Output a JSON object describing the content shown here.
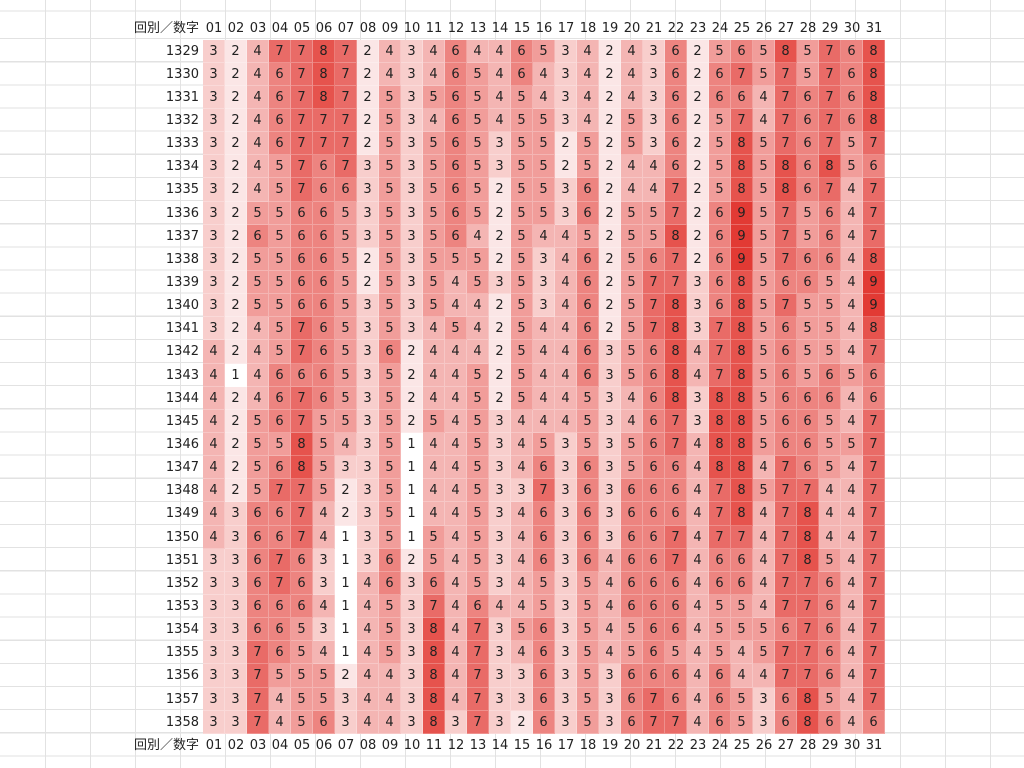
{
  "table": {
    "header": [
      "回別／数字",
      "01",
      "02",
      "03",
      "04",
      "05",
      "06",
      "07",
      "08",
      "09",
      "10",
      "11",
      "12",
      "13",
      "14",
      "15",
      "16",
      "17",
      "18",
      "19",
      "20",
      "21",
      "22",
      "23",
      "24",
      "25",
      "26",
      "27",
      "28",
      "29",
      "30",
      "31"
    ],
    "rows": [
      {
        "label": 1329,
        "cells": [
          3,
          2,
          4,
          7,
          7,
          8,
          7,
          2,
          4,
          3,
          4,
          6,
          4,
          4,
          6,
          5,
          3,
          4,
          2,
          4,
          3,
          6,
          2,
          5,
          6,
          5,
          8,
          5,
          7,
          6,
          8
        ]
      },
      {
        "label": 1330,
        "cells": [
          3,
          2,
          4,
          6,
          7,
          8,
          7,
          2,
          4,
          3,
          4,
          6,
          5,
          4,
          6,
          4,
          3,
          4,
          2,
          4,
          3,
          6,
          2,
          6,
          7,
          5,
          7,
          5,
          7,
          6,
          8
        ]
      },
      {
        "label": 1331,
        "cells": [
          3,
          2,
          4,
          6,
          7,
          8,
          7,
          2,
          5,
          3,
          5,
          6,
          5,
          4,
          5,
          4,
          3,
          4,
          2,
          4,
          3,
          6,
          2,
          6,
          6,
          4,
          7,
          6,
          7,
          6,
          8
        ]
      },
      {
        "label": 1332,
        "cells": [
          3,
          2,
          4,
          6,
          7,
          7,
          7,
          2,
          5,
          3,
          4,
          6,
          5,
          4,
          5,
          5,
          3,
          4,
          2,
          5,
          3,
          6,
          2,
          5,
          7,
          4,
          7,
          6,
          7,
          6,
          8
        ]
      },
      {
        "label": 1333,
        "cells": [
          3,
          2,
          4,
          6,
          7,
          7,
          7,
          2,
          5,
          3,
          5,
          6,
          5,
          3,
          5,
          5,
          2,
          5,
          2,
          5,
          3,
          6,
          2,
          5,
          8,
          5,
          7,
          6,
          7,
          5,
          7
        ]
      },
      {
        "label": 1334,
        "cells": [
          3,
          2,
          4,
          5,
          7,
          6,
          7,
          3,
          5,
          3,
          5,
          6,
          5,
          3,
          5,
          5,
          2,
          5,
          2,
          4,
          4,
          6,
          2,
          5,
          8,
          5,
          8,
          6,
          8,
          5,
          6
        ]
      },
      {
        "label": 1335,
        "cells": [
          3,
          2,
          4,
          5,
          7,
          6,
          6,
          3,
          5,
          3,
          5,
          6,
          5,
          2,
          5,
          5,
          3,
          6,
          2,
          4,
          4,
          7,
          2,
          5,
          8,
          5,
          8,
          6,
          7,
          4,
          7
        ]
      },
      {
        "label": 1336,
        "cells": [
          3,
          2,
          5,
          5,
          6,
          6,
          5,
          3,
          5,
          3,
          5,
          6,
          5,
          2,
          5,
          5,
          3,
          6,
          2,
          5,
          5,
          7,
          2,
          6,
          9,
          5,
          7,
          5,
          6,
          4,
          7
        ]
      },
      {
        "label": 1337,
        "cells": [
          3,
          2,
          6,
          5,
          6,
          6,
          5,
          3,
          5,
          3,
          5,
          6,
          4,
          2,
          5,
          4,
          4,
          5,
          2,
          5,
          5,
          8,
          2,
          6,
          9,
          5,
          7,
          5,
          6,
          4,
          7
        ]
      },
      {
        "label": 1338,
        "cells": [
          3,
          2,
          5,
          5,
          6,
          6,
          5,
          2,
          5,
          3,
          5,
          5,
          5,
          2,
          5,
          3,
          4,
          6,
          2,
          5,
          6,
          7,
          2,
          6,
          9,
          5,
          7,
          6,
          6,
          4,
          8
        ]
      },
      {
        "label": 1339,
        "cells": [
          3,
          2,
          5,
          5,
          6,
          6,
          5,
          2,
          5,
          3,
          5,
          4,
          5,
          3,
          5,
          3,
          4,
          6,
          2,
          5,
          7,
          7,
          3,
          6,
          8,
          5,
          6,
          6,
          5,
          4,
          9
        ]
      },
      {
        "label": 1340,
        "cells": [
          3,
          2,
          5,
          5,
          6,
          6,
          5,
          3,
          5,
          3,
          5,
          4,
          4,
          2,
          5,
          3,
          4,
          6,
          2,
          5,
          7,
          8,
          3,
          6,
          8,
          5,
          7,
          5,
          5,
          4,
          9
        ]
      },
      {
        "label": 1341,
        "cells": [
          3,
          2,
          4,
          5,
          7,
          6,
          5,
          3,
          5,
          3,
          4,
          5,
          4,
          2,
          5,
          4,
          4,
          6,
          2,
          5,
          7,
          8,
          3,
          7,
          8,
          5,
          6,
          5,
          5,
          4,
          8
        ]
      },
      {
        "label": 1342,
        "cells": [
          4,
          2,
          4,
          5,
          7,
          6,
          5,
          3,
          6,
          2,
          4,
          4,
          4,
          2,
          5,
          4,
          4,
          6,
          3,
          5,
          6,
          8,
          4,
          7,
          8,
          5,
          6,
          5,
          5,
          4,
          7
        ]
      },
      {
        "label": 1343,
        "cells": [
          4,
          1,
          4,
          6,
          6,
          6,
          5,
          3,
          5,
          2,
          4,
          4,
          5,
          2,
          5,
          4,
          4,
          6,
          3,
          5,
          6,
          8,
          4,
          7,
          8,
          5,
          6,
          5,
          6,
          5,
          6
        ]
      },
      {
        "label": 1344,
        "cells": [
          4,
          2,
          4,
          6,
          7,
          6,
          5,
          3,
          5,
          2,
          4,
          4,
          5,
          2,
          5,
          4,
          4,
          5,
          3,
          4,
          6,
          8,
          3,
          8,
          8,
          5,
          6,
          6,
          6,
          4,
          6
        ]
      },
      {
        "label": 1345,
        "cells": [
          4,
          2,
          5,
          6,
          7,
          5,
          5,
          3,
          5,
          2,
          5,
          4,
          5,
          3,
          4,
          4,
          4,
          5,
          3,
          4,
          6,
          7,
          3,
          8,
          8,
          5,
          6,
          6,
          5,
          4,
          7
        ]
      },
      {
        "label": 1346,
        "cells": [
          4,
          2,
          5,
          5,
          8,
          5,
          4,
          3,
          5,
          1,
          4,
          4,
          5,
          3,
          4,
          5,
          3,
          5,
          3,
          5,
          6,
          7,
          4,
          8,
          8,
          5,
          6,
          6,
          5,
          5,
          7
        ]
      },
      {
        "label": 1347,
        "cells": [
          4,
          2,
          5,
          6,
          8,
          5,
          3,
          3,
          5,
          1,
          4,
          4,
          5,
          3,
          4,
          6,
          3,
          6,
          3,
          5,
          6,
          6,
          4,
          8,
          8,
          4,
          7,
          6,
          5,
          4,
          7
        ]
      },
      {
        "label": 1348,
        "cells": [
          4,
          2,
          5,
          7,
          7,
          5,
          2,
          3,
          5,
          1,
          4,
          4,
          5,
          3,
          3,
          7,
          3,
          6,
          3,
          6,
          6,
          6,
          4,
          7,
          8,
          5,
          7,
          7,
          4,
          4,
          7
        ]
      },
      {
        "label": 1349,
        "cells": [
          4,
          3,
          6,
          6,
          7,
          4,
          2,
          3,
          5,
          1,
          4,
          4,
          5,
          3,
          4,
          6,
          3,
          6,
          3,
          6,
          6,
          6,
          4,
          7,
          8,
          4,
          7,
          8,
          4,
          4,
          7
        ]
      },
      {
        "label": 1350,
        "cells": [
          4,
          3,
          6,
          6,
          7,
          4,
          1,
          3,
          5,
          1,
          5,
          4,
          5,
          3,
          4,
          6,
          3,
          6,
          3,
          6,
          6,
          7,
          4,
          7,
          7,
          4,
          7,
          8,
          4,
          4,
          7
        ]
      },
      {
        "label": 1351,
        "cells": [
          3,
          3,
          6,
          7,
          6,
          3,
          1,
          3,
          6,
          2,
          5,
          4,
          5,
          3,
          4,
          6,
          3,
          6,
          4,
          6,
          6,
          7,
          4,
          6,
          6,
          4,
          7,
          8,
          5,
          4,
          7
        ]
      },
      {
        "label": 1352,
        "cells": [
          3,
          3,
          6,
          7,
          6,
          3,
          1,
          4,
          6,
          3,
          6,
          4,
          5,
          3,
          4,
          5,
          3,
          5,
          4,
          6,
          6,
          6,
          4,
          6,
          6,
          4,
          7,
          7,
          6,
          4,
          7
        ]
      },
      {
        "label": 1353,
        "cells": [
          3,
          3,
          6,
          6,
          6,
          4,
          1,
          4,
          5,
          3,
          7,
          4,
          6,
          4,
          4,
          5,
          3,
          5,
          4,
          6,
          6,
          6,
          4,
          5,
          5,
          4,
          7,
          7,
          6,
          4,
          7
        ]
      },
      {
        "label": 1354,
        "cells": [
          3,
          3,
          6,
          6,
          5,
          3,
          1,
          4,
          5,
          3,
          8,
          4,
          7,
          3,
          5,
          6,
          3,
          5,
          4,
          5,
          6,
          6,
          4,
          5,
          5,
          5,
          6,
          7,
          6,
          4,
          7
        ]
      },
      {
        "label": 1355,
        "cells": [
          3,
          3,
          7,
          6,
          5,
          4,
          1,
          4,
          5,
          3,
          8,
          4,
          7,
          3,
          4,
          6,
          3,
          5,
          4,
          5,
          6,
          5,
          4,
          5,
          4,
          5,
          7,
          7,
          6,
          4,
          7
        ]
      },
      {
        "label": 1356,
        "cells": [
          3,
          3,
          7,
          5,
          5,
          5,
          2,
          4,
          4,
          3,
          8,
          4,
          7,
          3,
          3,
          6,
          3,
          5,
          3,
          6,
          6,
          6,
          4,
          6,
          4,
          4,
          7,
          7,
          6,
          4,
          7
        ]
      },
      {
        "label": 1357,
        "cells": [
          3,
          3,
          7,
          4,
          5,
          5,
          3,
          4,
          4,
          3,
          8,
          4,
          7,
          3,
          3,
          6,
          3,
          5,
          3,
          6,
          7,
          6,
          4,
          6,
          5,
          3,
          6,
          8,
          5,
          4,
          7
        ]
      },
      {
        "label": 1358,
        "cells": [
          3,
          3,
          7,
          4,
          5,
          6,
          3,
          4,
          4,
          3,
          8,
          3,
          7,
          3,
          2,
          6,
          3,
          5,
          3,
          6,
          7,
          7,
          4,
          6,
          5,
          3,
          6,
          8,
          6,
          4,
          6
        ]
      }
    ],
    "footer": [
      "回別／数字",
      "01",
      "02",
      "03",
      "04",
      "05",
      "06",
      "07",
      "08",
      "09",
      "10",
      "11",
      "12",
      "13",
      "14",
      "15",
      "16",
      "17",
      "18",
      "19",
      "20",
      "21",
      "22",
      "23",
      "24",
      "25",
      "26",
      "27",
      "28",
      "29",
      "30",
      "31"
    ]
  }
}
